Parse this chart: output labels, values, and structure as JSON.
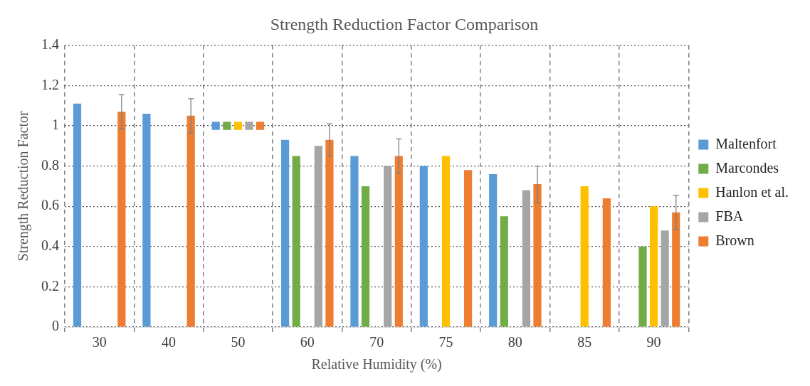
{
  "chart_data": {
    "type": "bar",
    "title": "Strength Reduction Factor Comparison",
    "xlabel": "Relative Humidity (%)",
    "ylabel": "Strength Reduction Factor",
    "categories": [
      "30",
      "40",
      "50",
      "60",
      "70",
      "75",
      "80",
      "85",
      "90"
    ],
    "series": [
      {
        "name": "Maltenfort",
        "color": "#5b9bd5",
        "values": [
          1.11,
          1.06,
          0.04,
          0.93,
          0.85,
          0.8,
          0.76,
          null,
          null
        ],
        "base": [
          0,
          0,
          0.98,
          0,
          0,
          0,
          0,
          null,
          null
        ]
      },
      {
        "name": "Marcondes",
        "color": "#70ad47",
        "values": [
          null,
          null,
          0.04,
          0.85,
          0.7,
          null,
          0.55,
          null,
          0.4
        ],
        "base": [
          null,
          null,
          0.98,
          0,
          0,
          null,
          0,
          null,
          0
        ]
      },
      {
        "name": "Hanlon et al.",
        "color": "#ffc000",
        "values": [
          null,
          null,
          0.04,
          null,
          null,
          0.85,
          null,
          0.7,
          0.6
        ],
        "base": [
          null,
          null,
          0.98,
          null,
          null,
          0,
          null,
          0,
          0
        ]
      },
      {
        "name": "FBA",
        "color": "#a5a5a5",
        "values": [
          null,
          null,
          0.04,
          0.9,
          0.8,
          null,
          0.68,
          null,
          0.48
        ],
        "base": [
          null,
          null,
          0.98,
          0,
          0,
          null,
          0,
          null,
          0
        ]
      },
      {
        "name": "Brown",
        "color": "#ed7d31",
        "values": [
          1.07,
          1.05,
          0.04,
          0.93,
          0.85,
          0.78,
          0.71,
          0.64,
          0.57
        ],
        "base": [
          0,
          0,
          0.98,
          0,
          0,
          0,
          0,
          0,
          0
        ],
        "errors": [
          0.085,
          0.085,
          null,
          0.08,
          0.085,
          null,
          0.09,
          null,
          0.085
        ]
      }
    ],
    "ylim": [
      0,
      1.4
    ],
    "yticks": [
      0,
      0.2,
      0.4,
      0.6,
      0.8,
      1,
      1.2,
      1.4
    ],
    "grid": true,
    "legend": "right"
  }
}
